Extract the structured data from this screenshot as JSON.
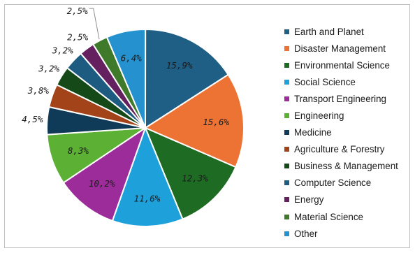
{
  "chart_data": {
    "type": "pie",
    "title": "",
    "legend_position": "right",
    "slices": [
      {
        "name": "Earth and Planet",
        "value": 15.9,
        "label": "15,9%",
        "color": "#1f5f86"
      },
      {
        "name": "Disaster Management",
        "value": 15.6,
        "label": "15,6%",
        "color": "#ec7334"
      },
      {
        "name": "Environmental Science",
        "value": 12.3,
        "label": "12,3%",
        "color": "#1e6b24"
      },
      {
        "name": "Social Science",
        "value": 11.6,
        "label": "11,6%",
        "color": "#1ea0db"
      },
      {
        "name": "Transport Engineering",
        "value": 10.2,
        "label": "10,2%",
        "color": "#9c2c99"
      },
      {
        "name": "Engineering",
        "value": 8.3,
        "label": "8,3%",
        "color": "#5cb135"
      },
      {
        "name": "Medicine",
        "value": 4.5,
        "label": "4,5%",
        "color": "#0f3b58"
      },
      {
        "name": "Agriculture & Forestry",
        "value": 3.8,
        "label": "3,8%",
        "color": "#a3431a"
      },
      {
        "name": "Business & Management",
        "value": 3.2,
        "label": "3,2%",
        "color": "#154a18"
      },
      {
        "name": "Computer Science",
        "value": 3.2,
        "label": "3,2%",
        "color": "#1d5c80"
      },
      {
        "name": "Energy",
        "value": 2.5,
        "label": "2,5%",
        "color": "#65205f"
      },
      {
        "name": "Material Science",
        "value": 2.5,
        "label": "2,5%",
        "color": "#3f7a2a"
      },
      {
        "name": "Other",
        "value": 6.4,
        "label": "6,4%",
        "color": "#2592cf"
      }
    ]
  }
}
